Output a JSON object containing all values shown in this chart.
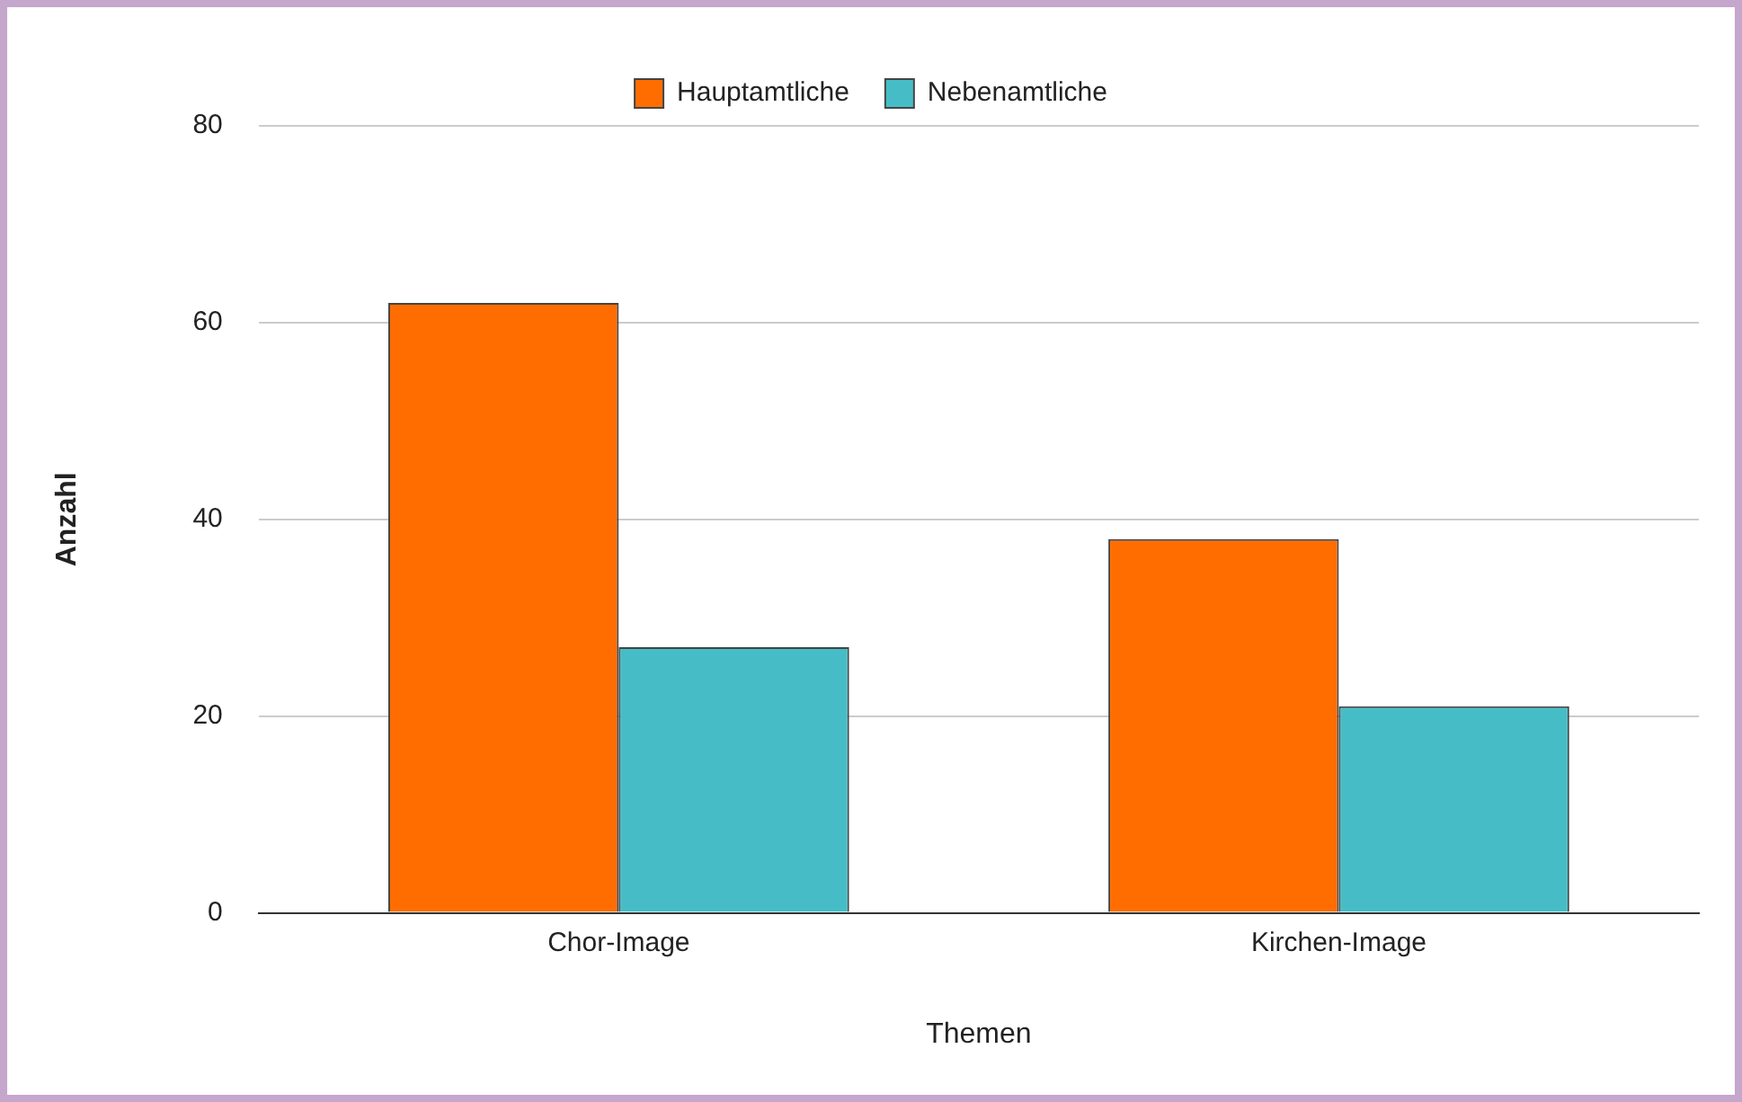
{
  "chart_data": {
    "type": "bar",
    "xlabel": "Themen",
    "ylabel": "Anzahl",
    "categories": [
      "Chor-Image",
      "Kirchen-Image"
    ],
    "series": [
      {
        "name": "Hauptamtliche",
        "color": "#ff6d01",
        "values": [
          62,
          38
        ]
      },
      {
        "name": "Nebenamtliche",
        "color": "#46bdc6",
        "values": [
          27,
          21
        ]
      }
    ],
    "ylim": [
      0,
      80
    ],
    "yticks": [
      0,
      20,
      40,
      60,
      80
    ],
    "grid": "y",
    "legend": "top"
  }
}
